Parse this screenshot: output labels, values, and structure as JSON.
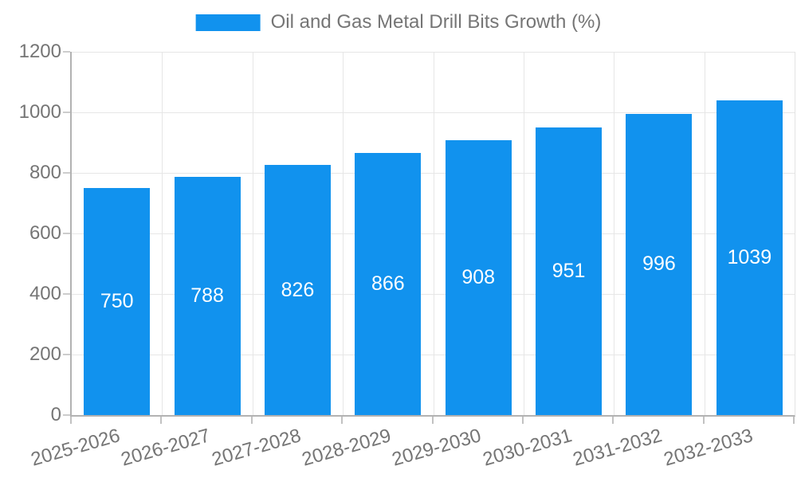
{
  "chart_data": {
    "type": "bar",
    "title": "Oil and Gas Metal Drill Bits Growth (%)",
    "categories": [
      "2025-2026",
      "2026-2027",
      "2027-2028",
      "2028-2029",
      "2029-2030",
      "2030-2031",
      "2031-2032",
      "2032-2033"
    ],
    "values": [
      750,
      788,
      826,
      866,
      908,
      951,
      996,
      1039
    ],
    "xlabel": "",
    "ylabel": "",
    "ylim": [
      0,
      1200
    ],
    "yticks": [
      0,
      200,
      400,
      600,
      800,
      1000,
      1200
    ],
    "grid": true,
    "legend": {
      "position": "top-center",
      "label": "Oil and Gas Metal Drill Bits Growth (%)"
    },
    "colors": {
      "bar": "#1192ee",
      "value_label": "#ffffff",
      "tick_label": "#757575",
      "legend_text": "#757575",
      "gridline": "#e6e6e6",
      "axis_line": "#b2b2b2"
    },
    "value_labels_shown": true,
    "value_label_position": "center-of-bar"
  }
}
